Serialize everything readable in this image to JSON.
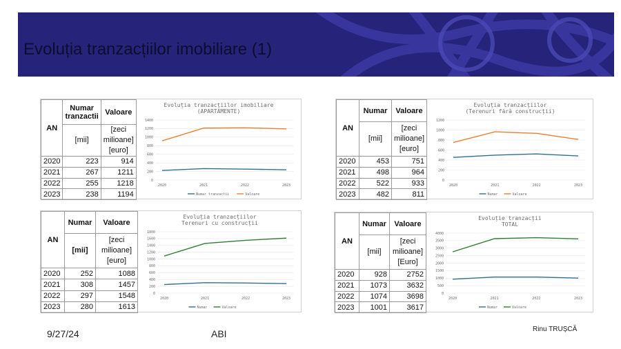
{
  "slide": {
    "title": "Evoluția tranzacțiilor imobiliare (1)",
    "date": "9/27/24",
    "center_text": "ABI",
    "author": "Rinu TRUȘCĂ"
  },
  "colors": {
    "banner": "#26237a",
    "series_count": "#2e6f8e",
    "series_value_orange": "#ed7d31",
    "series_value_green": "#2e7d32"
  },
  "panels": [
    {
      "table": {
        "h_an": "AN",
        "h_count": "Numar tranzactii",
        "h_value": "Valoare",
        "u_count": "[mii]",
        "u_value": "[zeci milioane] [euro]",
        "rows": [
          {
            "an": "2020",
            "n": "223",
            "v": "914"
          },
          {
            "an": "2021",
            "n": "267",
            "v": "1211"
          },
          {
            "an": "2022",
            "n": "255",
            "v": "1218"
          },
          {
            "an": "2023",
            "n": "238",
            "v": "1194"
          }
        ]
      }
    },
    {
      "table": {
        "h_an": "AN",
        "h_count": "Numar",
        "h_value": "Valoare",
        "u_count": "[mii]",
        "u_value": "[zeci milioane] [euro]",
        "rows": [
          {
            "an": "2020",
            "n": "453",
            "v": "751"
          },
          {
            "an": "2021",
            "n": "498",
            "v": "964"
          },
          {
            "an": "2022",
            "n": "522",
            "v": "933"
          },
          {
            "an": "2023",
            "n": "482",
            "v": "811"
          }
        ]
      }
    },
    {
      "table": {
        "h_an": "AN",
        "h_count": "Numar",
        "h_value": "Valoare",
        "u_count": "[mii]",
        "u_value": "[zeci milioane] [euro]",
        "rows": [
          {
            "an": "2020",
            "n": "252",
            "v": "1088"
          },
          {
            "an": "2021",
            "n": "308",
            "v": "1457"
          },
          {
            "an": "2022",
            "n": "297",
            "v": "1548"
          },
          {
            "an": "2023",
            "n": "280",
            "v": "1613"
          }
        ]
      }
    },
    {
      "table": {
        "h_an": "AN",
        "h_count": "Numar",
        "h_value": "Valoare",
        "u_count": "[mii]",
        "u_value": "[zeci milioane] [Euro]",
        "rows": [
          {
            "an": "2020",
            "n": "928",
            "v": "2752"
          },
          {
            "an": "2021",
            "n": "1073",
            "v": "3632"
          },
          {
            "an": "2022",
            "n": "1074",
            "v": "3698"
          },
          {
            "an": "2023",
            "n": "1001",
            "v": "3617"
          }
        ]
      }
    }
  ],
  "chart_data": [
    {
      "type": "line",
      "title": "Evoluția tranzacțiilor imobiliare (APARTAMENTE)",
      "title_lines": [
        "Evoluția tranzacțiilor imobiliare",
        "(APARTAMENTE)"
      ],
      "categories": [
        "2020",
        "2021",
        "2022",
        "2023"
      ],
      "ylim": [
        0,
        1400
      ],
      "yticks": [
        0,
        200,
        400,
        600,
        800,
        1000,
        1200,
        1400
      ],
      "series": [
        {
          "name": "Numar tranzactii",
          "color": "#2e6f8e",
          "values": [
            223,
            267,
            255,
            238
          ]
        },
        {
          "name": "Valoare",
          "color": "#ed7d31",
          "values": [
            914,
            1211,
            1218,
            1194
          ]
        }
      ],
      "legend": "bottom"
    },
    {
      "type": "line",
      "title": "Evoluția tranzacțiilor (Terenuri fără construcții)",
      "title_lines": [
        "Evoluția tranzacțiilor",
        "(Terenuri fără construcții)"
      ],
      "categories": [
        "2020",
        "2021",
        "2022",
        "2023"
      ],
      "ylim": [
        0,
        1200
      ],
      "yticks": [
        0,
        200,
        400,
        600,
        800,
        1000,
        1200
      ],
      "series": [
        {
          "name": "Numar",
          "color": "#2e6f8e",
          "values": [
            453,
            498,
            522,
            482
          ]
        },
        {
          "name": "Valoare",
          "color": "#ed7d31",
          "values": [
            751,
            964,
            933,
            811
          ]
        }
      ],
      "legend": "bottom"
    },
    {
      "type": "line",
      "title": "Evoluția tranzacțiilor Terenuri cu construcții",
      "title_lines": [
        "Evoluția tranzacțiilor",
        "Terenuri cu construcții"
      ],
      "categories": [
        "2020",
        "2021",
        "2022",
        "2023"
      ],
      "ylim": [
        0,
        1800
      ],
      "yticks": [
        0,
        200,
        400,
        600,
        800,
        1000,
        1200,
        1400,
        1600,
        1800
      ],
      "series": [
        {
          "name": "Numar",
          "color": "#2e6f8e",
          "values": [
            252,
            308,
            297,
            280
          ]
        },
        {
          "name": "Valoare",
          "color": "#2e7d32",
          "values": [
            1088,
            1457,
            1548,
            1613
          ]
        }
      ],
      "legend": "bottom"
    },
    {
      "type": "line",
      "title": "Evoluție tranzacții TOTAL",
      "title_lines": [
        "Evoluție tranzacții",
        "TOTAL"
      ],
      "categories": [
        "2020",
        "2021",
        "2022",
        "2023"
      ],
      "ylim": [
        0,
        4000
      ],
      "yticks": [
        0,
        500,
        1000,
        1500,
        2000,
        2500,
        3000,
        3500,
        4000
      ],
      "series": [
        {
          "name": "Numar",
          "color": "#2e6f8e",
          "values": [
            928,
            1073,
            1074,
            1001
          ]
        },
        {
          "name": "Valoare",
          "color": "#2e7d32",
          "values": [
            2752,
            3632,
            3698,
            3617
          ]
        }
      ],
      "legend": "bottom"
    }
  ]
}
